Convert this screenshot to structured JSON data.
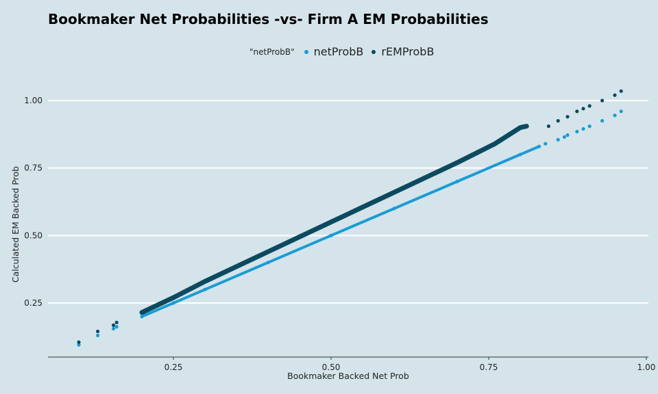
{
  "chart_data": {
    "type": "scatter",
    "title": "Bookmaker Net Probabilities -vs- Firm A EM Probabilities",
    "xlabel": "Bookmaker Backed Net Prob",
    "ylabel": "Calculated EM Backed Prob",
    "xlim": [
      0.05,
      1.0
    ],
    "ylim": [
      0.05,
      1.1
    ],
    "x_ticks": [
      0.25,
      0.5,
      0.75,
      1.0
    ],
    "x_tick_labels": [
      "0.25",
      "0.50",
      "0.75",
      "1.00"
    ],
    "y_ticks": [
      0.25,
      0.5,
      0.75,
      1.0
    ],
    "y_tick_labels": [
      "0.25",
      "0.50",
      "0.75",
      "1.00"
    ],
    "grid": "horizontal",
    "legend": {
      "placement": "top",
      "title": "\"netProbB\""
    },
    "series": [
      {
        "name": "netProbB",
        "color": "#1a9cd4",
        "points": [
          [
            0.1,
            0.095
          ],
          [
            0.13,
            0.13
          ],
          [
            0.155,
            0.155
          ],
          [
            0.16,
            0.162
          ],
          [
            0.2,
            0.2
          ],
          [
            0.25,
            0.25
          ],
          [
            0.3,
            0.3
          ],
          [
            0.4,
            0.4
          ],
          [
            0.5,
            0.5
          ],
          [
            0.6,
            0.6
          ],
          [
            0.7,
            0.7
          ],
          [
            0.8,
            0.8
          ],
          [
            0.83,
            0.83
          ],
          [
            0.84,
            0.84
          ],
          [
            0.86,
            0.855
          ],
          [
            0.87,
            0.865
          ],
          [
            0.875,
            0.872
          ],
          [
            0.89,
            0.885
          ],
          [
            0.9,
            0.895
          ],
          [
            0.91,
            0.905
          ],
          [
            0.93,
            0.925
          ],
          [
            0.95,
            0.945
          ],
          [
            0.96,
            0.96
          ]
        ]
      },
      {
        "name": "rEMProbB",
        "color": "#0c4a60",
        "points": [
          [
            0.1,
            0.105
          ],
          [
            0.13,
            0.145
          ],
          [
            0.155,
            0.168
          ],
          [
            0.16,
            0.178
          ],
          [
            0.2,
            0.215
          ],
          [
            0.25,
            0.27
          ],
          [
            0.3,
            0.33
          ],
          [
            0.4,
            0.44
          ],
          [
            0.5,
            0.55
          ],
          [
            0.6,
            0.66
          ],
          [
            0.7,
            0.77
          ],
          [
            0.76,
            0.84
          ],
          [
            0.78,
            0.87
          ],
          [
            0.8,
            0.9
          ],
          [
            0.81,
            0.905
          ],
          [
            0.845,
            0.905
          ],
          [
            0.86,
            0.925
          ],
          [
            0.875,
            0.94
          ],
          [
            0.89,
            0.96
          ],
          [
            0.9,
            0.97
          ],
          [
            0.91,
            0.98
          ],
          [
            0.93,
            1.0
          ],
          [
            0.95,
            1.02
          ],
          [
            0.96,
            1.035
          ]
        ]
      }
    ]
  }
}
